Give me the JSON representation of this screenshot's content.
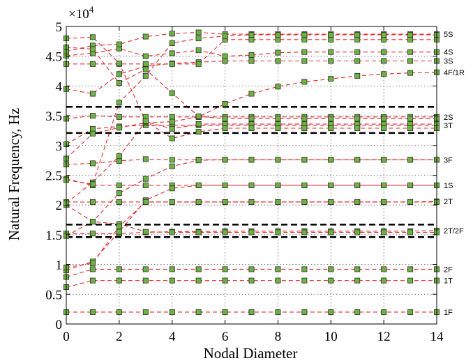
{
  "chart_data": {
    "type": "line",
    "title": "",
    "xlabel": "Nodal Diameter",
    "ylabel": "Natural Frequency, Hz",
    "y_multiplier_label": "×10",
    "y_multiplier_exponent": "4",
    "xlim": [
      0,
      14
    ],
    "ylim": [
      0,
      5
    ],
    "x_ticks": [
      0,
      2,
      4,
      6,
      8,
      10,
      12,
      14
    ],
    "y_ticks": [
      0,
      0.5,
      1,
      1.5,
      2,
      2.5,
      3,
      3.5,
      4,
      4.5,
      5
    ],
    "x_tick_labels": [
      "0",
      "2",
      "4",
      "6",
      "8",
      "10",
      "12",
      "14"
    ],
    "y_tick_labels": [
      "0",
      "0.5",
      "1",
      "1.5",
      "2",
      "2.5",
      "3",
      "3.5",
      "4",
      "4.5",
      "5"
    ],
    "grid": true,
    "marker_color": "#6db33f",
    "line_color": "#e0282e",
    "series": [
      {
        "name": "1F",
        "x": [
          0,
          1,
          2,
          3,
          4,
          5,
          6,
          7,
          8,
          9,
          10,
          11,
          12,
          13,
          14
        ],
        "values": [
          0.2,
          0.2,
          0.2,
          0.2,
          0.2,
          0.2,
          0.2,
          0.2,
          0.2,
          0.2,
          0.2,
          0.2,
          0.2,
          0.2,
          0.2
        ]
      },
      {
        "name": "1T",
        "x": [
          0,
          1,
          2,
          3,
          4,
          5,
          6,
          7,
          8,
          9,
          10,
          11,
          12,
          13,
          14
        ],
        "values": [
          0.62,
          0.73,
          0.73,
          0.73,
          0.73,
          0.73,
          0.73,
          0.73,
          0.73,
          0.73,
          0.73,
          0.73,
          0.73,
          0.73,
          0.73
        ]
      },
      {
        "name": "2F",
        "x": [
          0,
          1,
          2,
          3,
          4,
          5,
          6,
          7,
          8,
          9,
          10,
          11,
          12,
          13,
          14
        ],
        "values": [
          0.79,
          0.92,
          0.92,
          0.92,
          0.92,
          0.92,
          0.92,
          0.92,
          0.92,
          0.92,
          0.92,
          0.92,
          0.92,
          0.92,
          0.92
        ]
      },
      {
        "name": "2T/2F",
        "x": [
          0,
          1,
          2,
          3,
          4,
          5,
          6,
          7,
          8,
          9,
          10,
          11,
          12,
          13,
          14
        ],
        "values": [
          1.52,
          1.52,
          1.52,
          1.54,
          1.55,
          1.55,
          1.56,
          1.56,
          1.56,
          1.56,
          1.56,
          1.56,
          1.56,
          1.56,
          1.57
        ]
      },
      {
        "name": "2T",
        "x": [
          0,
          1,
          2,
          3,
          4,
          5,
          6,
          7,
          8,
          9,
          10,
          11,
          12,
          13,
          14
        ],
        "values": [
          2.05,
          2.05,
          2.05,
          2.05,
          2.05,
          2.05,
          2.05,
          2.05,
          2.05,
          2.05,
          2.05,
          2.05,
          2.05,
          2.05,
          2.06
        ]
      },
      {
        "name": "1S",
        "x": [
          0,
          1,
          2,
          3,
          4,
          5,
          6,
          7,
          8,
          9,
          10,
          11,
          12,
          13,
          14
        ],
        "values": [
          2.44,
          2.33,
          2.33,
          2.33,
          2.33,
          2.33,
          2.33,
          2.33,
          2.33,
          2.33,
          2.33,
          2.33,
          2.33,
          2.33,
          2.33
        ]
      },
      {
        "name": "3F",
        "x": [
          0,
          1,
          2,
          3,
          4,
          5,
          6,
          7,
          8,
          9,
          10,
          11,
          12,
          13,
          14
        ],
        "values": [
          2.68,
          2.7,
          2.74,
          2.77,
          2.76,
          2.76,
          2.76,
          2.76,
          2.76,
          2.76,
          2.76,
          2.76,
          2.76,
          2.76,
          2.76
        ]
      },
      {
        "name": "3T",
        "x": [
          0,
          1,
          2,
          3,
          4,
          5,
          6,
          7,
          8,
          9,
          10,
          11,
          12,
          13,
          14
        ],
        "values": [
          3.02,
          3.28,
          3.32,
          3.34,
          3.34,
          3.34,
          3.34,
          3.34,
          3.34,
          3.34,
          3.34,
          3.34,
          3.34,
          3.34,
          3.34
        ]
      },
      {
        "name": "2S",
        "x": [
          0,
          1,
          2,
          3,
          4,
          5,
          6,
          7,
          8,
          9,
          10,
          11,
          12,
          13,
          14
        ],
        "values": [
          3.45,
          3.5,
          3.48,
          3.48,
          3.48,
          3.48,
          3.48,
          3.48,
          3.48,
          3.48,
          3.48,
          3.48,
          3.48,
          3.48,
          3.48
        ]
      },
      {
        "name": "4F/1R",
        "x": [
          0,
          1,
          2,
          3,
          4,
          5,
          6,
          7,
          8,
          9,
          10,
          11,
          12,
          13,
          14
        ],
        "values": [
          2.78,
          3.2,
          3.3,
          3.38,
          3.4,
          3.48,
          3.7,
          3.87,
          3.99,
          4.07,
          4.12,
          4.17,
          4.2,
          4.22,
          4.23
        ]
      },
      {
        "name": "3S",
        "x": [
          0,
          1,
          2,
          3,
          4,
          5,
          6,
          7,
          8,
          9,
          10,
          11,
          12,
          13,
          14
        ],
        "values": [
          3.95,
          3.87,
          4.2,
          4.33,
          4.38,
          4.4,
          4.42,
          4.42,
          4.42,
          4.42,
          4.42,
          4.42,
          4.42,
          4.42,
          4.42
        ]
      },
      {
        "name": "4S",
        "x": [
          0,
          1,
          2,
          3,
          4,
          5,
          6,
          7,
          8,
          9,
          10,
          11,
          12,
          13,
          14
        ],
        "values": [
          4.51,
          4.55,
          4.63,
          4.5,
          4.55,
          4.6,
          4.5,
          4.52,
          4.56,
          4.57,
          4.57,
          4.57,
          4.57,
          4.57,
          4.57
        ]
      },
      {
        "name": "5S",
        "x": [
          0,
          1,
          2,
          3,
          4,
          5,
          6,
          7,
          8,
          9,
          10,
          11,
          12,
          13,
          14
        ],
        "values": [
          4.58,
          4.68,
          4.7,
          4.83,
          4.88,
          4.9,
          4.87,
          4.87,
          4.87,
          4.87,
          4.87,
          4.87,
          4.87,
          4.87,
          4.87
        ]
      },
      {
        "name": "",
        "x": [
          0,
          1,
          2,
          3,
          4,
          5,
          6,
          7,
          8,
          9,
          10,
          11,
          12,
          13,
          14
        ],
        "values": [
          4.37,
          4.37,
          4.37,
          4.37,
          4.37,
          4.37,
          4.78,
          4.78,
          4.78,
          4.78,
          4.78,
          4.78,
          4.78,
          4.78,
          4.78
        ]
      },
      {
        "name": "",
        "x": [
          0,
          1,
          2,
          3,
          4,
          5,
          6,
          7,
          8,
          9,
          10,
          11,
          12,
          13,
          14
        ],
        "values": [
          2.0,
          1.72,
          1.68,
          1.55,
          1.54,
          1.54,
          1.54,
          1.54,
          1.54,
          1.54,
          1.54,
          1.54,
          1.54,
          1.54,
          1.54
        ]
      },
      {
        "name": "",
        "x": [
          0,
          1,
          2,
          3,
          4,
          5,
          6,
          7,
          8,
          9,
          10,
          11,
          12,
          13,
          14
        ],
        "values": [
          0.9,
          1.05,
          1.55,
          2.08,
          2.28,
          2.33,
          2.33,
          2.33,
          2.33,
          2.33,
          2.33,
          2.33,
          2.33,
          2.33,
          2.33
        ]
      },
      {
        "name": "",
        "x": [
          0,
          1,
          2,
          3,
          4,
          5,
          6,
          7,
          8,
          9,
          10,
          11,
          12,
          13,
          14
        ],
        "values": [
          0.95,
          1.02,
          1.64,
          2.05,
          2.05,
          2.05,
          2.05,
          2.05,
          2.05,
          2.05,
          2.05,
          2.05,
          2.05,
          2.05,
          2.05
        ]
      },
      {
        "name": "",
        "x": [
          0,
          1,
          2,
          3,
          4,
          5,
          6,
          7,
          8,
          9,
          10,
          11,
          12,
          13,
          14
        ],
        "values": [
          1.48,
          1.72,
          2.2,
          2.44,
          2.65,
          2.75,
          2.76,
          2.76,
          2.76,
          2.76,
          2.76,
          2.76,
          2.76,
          2.76,
          2.76
        ]
      },
      {
        "name": "",
        "x": [
          0,
          1,
          2,
          3,
          4,
          5,
          6,
          7,
          8,
          9,
          10,
          11,
          12,
          13,
          14
        ],
        "values": [
          2.03,
          2.38,
          2.82,
          3.4,
          3.28,
          3.36,
          3.36,
          3.36,
          3.36,
          3.36,
          3.36,
          3.36,
          3.36,
          3.36,
          3.36
        ]
      },
      {
        "name": "",
        "x": [
          0,
          1,
          2,
          3,
          4,
          5,
          6,
          7,
          8,
          9,
          10,
          11,
          12,
          13,
          14
        ],
        "values": [
          2.42,
          2.35,
          3.72,
          4.17,
          4.72,
          4.8,
          4.84,
          4.86,
          4.86,
          4.86,
          4.86,
          4.86,
          4.86,
          4.86,
          4.86
        ]
      },
      {
        "name": "",
        "x": [
          0,
          1,
          2,
          3,
          4,
          5,
          6,
          7,
          8,
          9,
          10,
          11,
          12,
          13,
          14
        ],
        "values": [
          4.65,
          4.62,
          4.05,
          4.28,
          3.88,
          3.49,
          3.45,
          3.45,
          3.45,
          3.45,
          3.45,
          3.45,
          3.45,
          3.45,
          3.45
        ]
      },
      {
        "name": "",
        "x": [
          0,
          1,
          2,
          3,
          4,
          5,
          6,
          7,
          8,
          9,
          10,
          11,
          12,
          13,
          14
        ],
        "values": [
          4.8,
          4.82,
          4.38,
          3.41,
          3.12,
          3.23,
          3.29,
          3.29,
          3.29,
          3.29,
          3.29,
          3.29,
          3.29,
          3.29,
          3.29
        ]
      }
    ],
    "reference_lines": [
      {
        "y": 3.65,
        "style": "dashed",
        "color": "#000000"
      },
      {
        "y": 3.21,
        "style": "dashed",
        "color": "#000000"
      },
      {
        "y": 1.67,
        "style": "dashed",
        "color": "#000000"
      },
      {
        "y": 1.46,
        "style": "dashed",
        "color": "#000000"
      }
    ]
  }
}
